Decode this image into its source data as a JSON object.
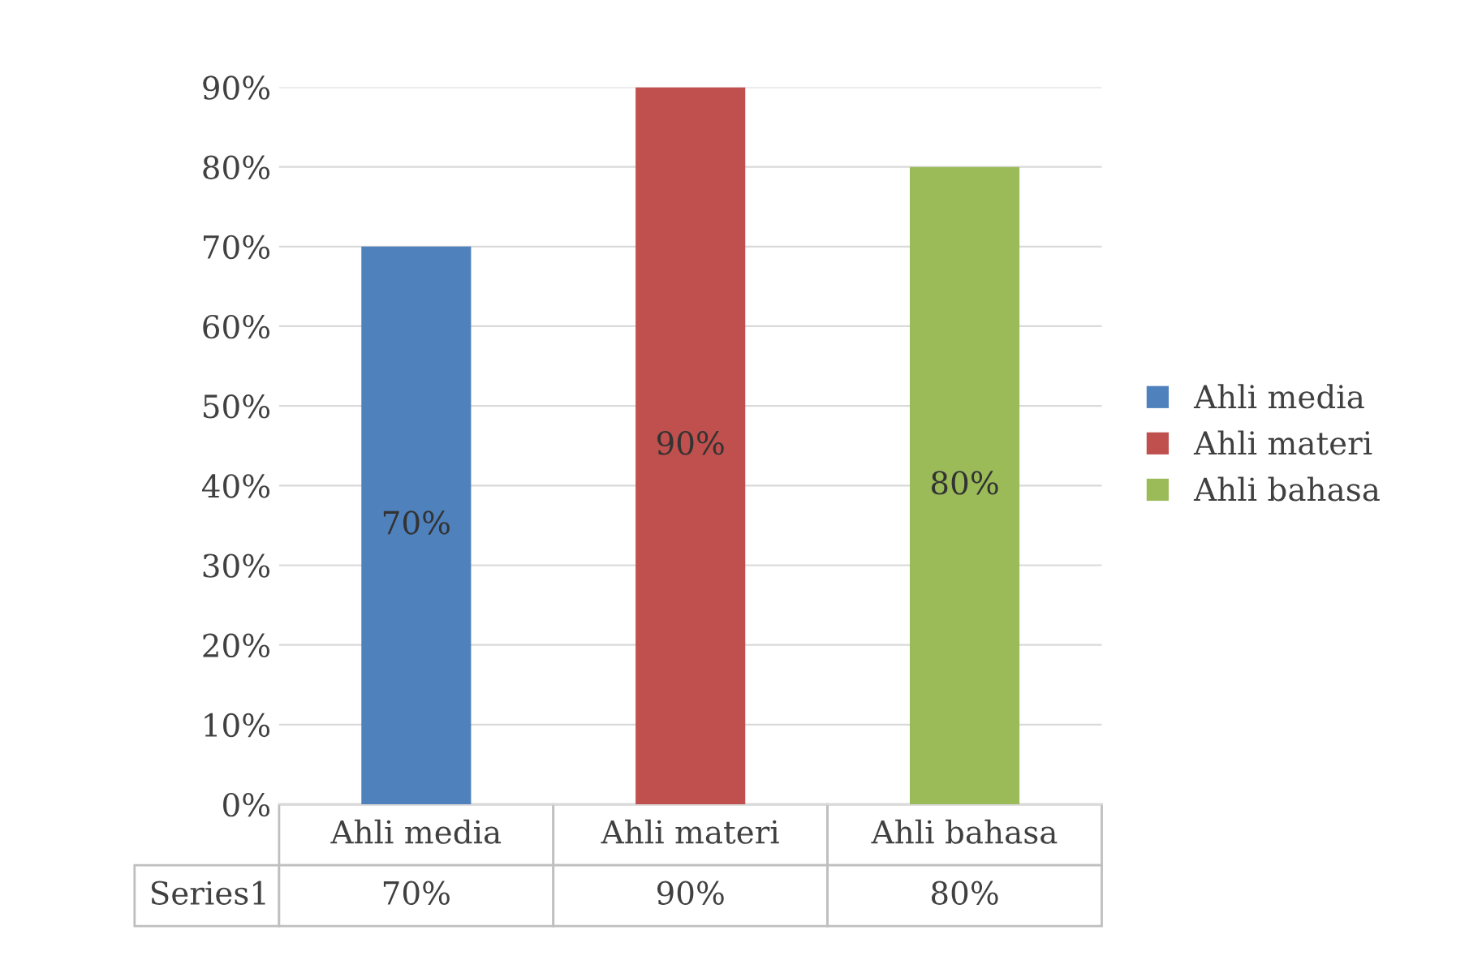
{
  "chart_data": {
    "type": "bar",
    "categories": [
      "Ahli media",
      "Ahli materi",
      "Ahli bahasa"
    ],
    "series": [
      {
        "name": "Ahli media",
        "color": "#4f81bd",
        "values": [
          70,
          null,
          null
        ],
        "value_labels": [
          "70%",
          null,
          null
        ]
      },
      {
        "name": "Ahli materi",
        "color": "#c0504d",
        "values": [
          null,
          90,
          null
        ],
        "value_labels": [
          null,
          "90%",
          null
        ]
      },
      {
        "name": "Ahli bahasa",
        "color": "#9bbb59",
        "values": [
          null,
          null,
          80
        ],
        "value_labels": [
          null,
          null,
          "80%"
        ]
      }
    ],
    "annotations": [
      "Series1"
    ],
    "ylim": [
      0,
      90
    ],
    "yticks": [
      {
        "value": 0,
        "label": "0%"
      },
      {
        "value": 10,
        "label": "10%"
      },
      {
        "value": 20,
        "label": "20%"
      },
      {
        "value": 30,
        "label": "30%"
      },
      {
        "value": 40,
        "label": "40%"
      },
      {
        "value": 50,
        "label": "50%"
      },
      {
        "value": 60,
        "label": "60%"
      },
      {
        "value": 70,
        "label": "70%"
      },
      {
        "value": 80,
        "label": "80%"
      },
      {
        "value": 90,
        "label": "90%"
      }
    ],
    "grid": "y",
    "legend": "right"
  }
}
